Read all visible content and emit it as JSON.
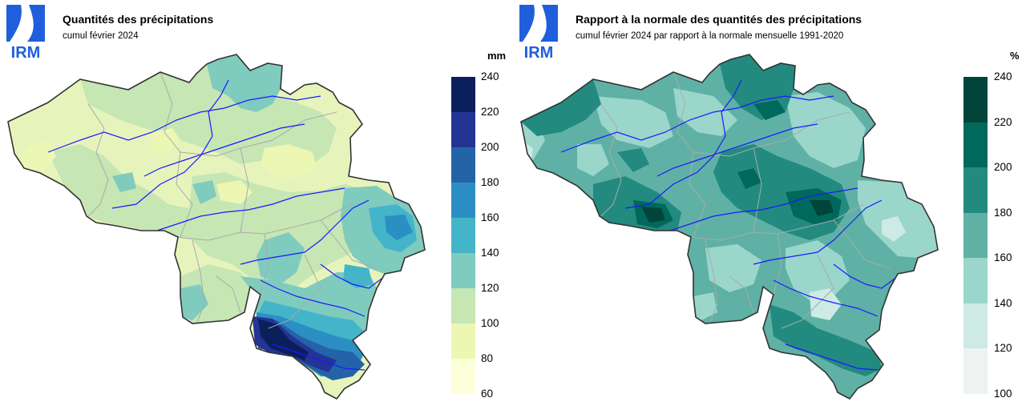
{
  "left": {
    "logo_text": "IRM",
    "title": "Quantités des précipitations",
    "subtitle": "cumul février 2024",
    "unit": "mm",
    "legend": {
      "ticks": [
        "240",
        "220",
        "200",
        "180",
        "160",
        "140",
        "120",
        "100",
        "80",
        "60"
      ],
      "colors": [
        "#0a1f5c",
        "#233494",
        "#2563a8",
        "#2b8fc4",
        "#44b5c8",
        "#7fcbbe",
        "#c6e6b4",
        "#edf7b4",
        "#fdffd8"
      ]
    }
  },
  "right": {
    "logo_text": "IRM",
    "title": "Rapport à la normale des quantités des précipitations",
    "subtitle": "cumul février 2024 par rapport à la normale mensuelle 1991-2020",
    "unit": "%",
    "legend": {
      "ticks": [
        "240",
        "220",
        "200",
        "180",
        "160",
        "140",
        "120",
        "100"
      ],
      "colors": [
        "#00443a",
        "#01695b",
        "#238a7f",
        "#5fb1a5",
        "#9bd6cb",
        "#cdeae4",
        "#eef3f1"
      ]
    }
  },
  "colors": {
    "logo_blue": "#1f5fdb",
    "border": "#333333",
    "river": "#1a1aff",
    "province": "#aaaaaa"
  }
}
